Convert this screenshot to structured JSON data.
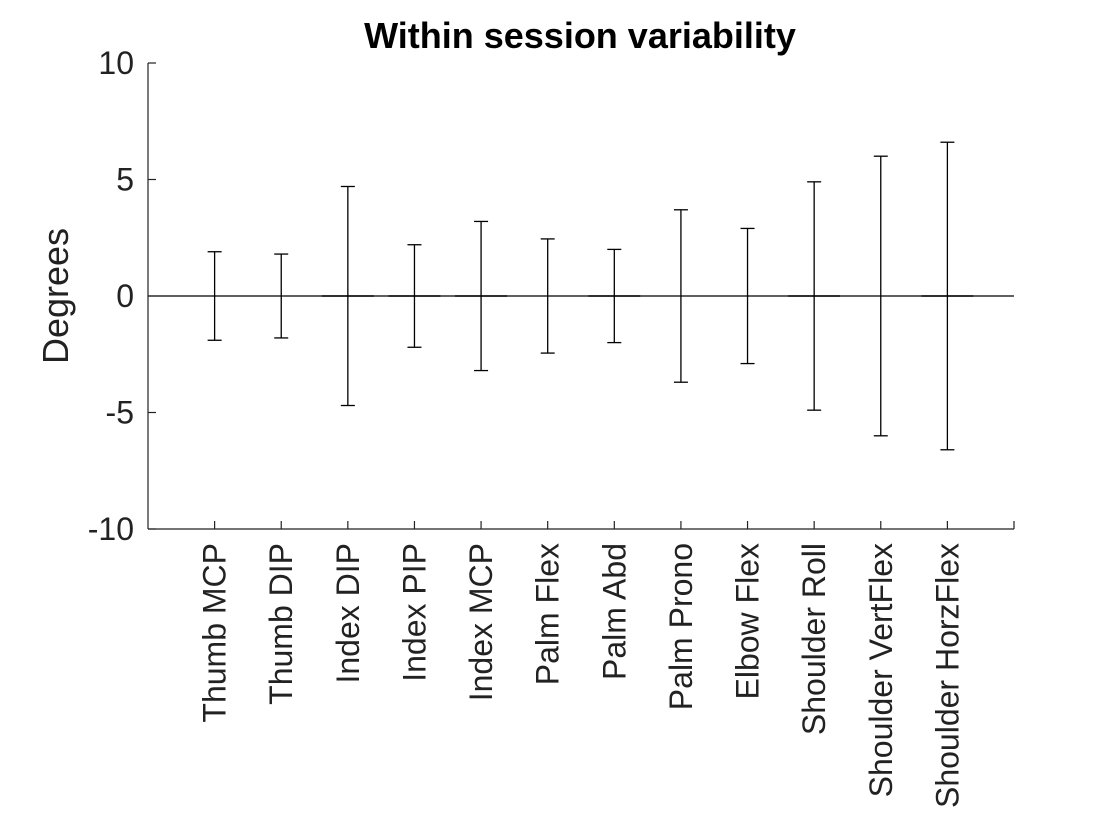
{
  "chart_data": {
    "type": "bar",
    "title": "Within session variability",
    "xlabel": "",
    "ylabel": "Degrees",
    "ylim": [
      -10,
      10
    ],
    "yticks": [
      10,
      5,
      0,
      -5,
      -10
    ],
    "yticklabels": [
      "10",
      "5",
      "0",
      "-5",
      "-10"
    ],
    "grid": false,
    "legend": "none",
    "categories": [
      "Thumb MCP",
      "Thumb DIP",
      "Index DIP",
      "Index PIP",
      "Index MCP",
      "Palm Flex",
      "Palm Abd",
      "Palm Prono",
      "Elbow Flex",
      "Shoulder Roll",
      "Shoulder VertFlex",
      "Shoulder HorzFlex"
    ],
    "series": [
      {
        "values": [
          0,
          0,
          0,
          0,
          0,
          0,
          0,
          0,
          0,
          0,
          0,
          0
        ],
        "error": [
          1.9,
          1.8,
          4.7,
          2.2,
          3.2,
          2.45,
          2.0,
          3.7,
          2.9,
          4.9,
          6.0,
          6.6
        ]
      }
    ]
  }
}
